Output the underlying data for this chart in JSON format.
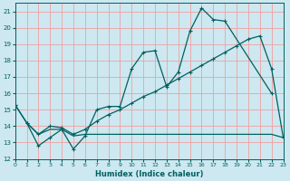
{
  "xlabel": "Humidex (Indice chaleur)",
  "bg_color": "#cde8f0",
  "grid_color": "#f0a0a0",
  "line_color": "#006060",
  "xlim": [
    0,
    23
  ],
  "ylim": [
    12,
    21.5
  ],
  "xticks": [
    0,
    1,
    2,
    3,
    4,
    5,
    6,
    7,
    8,
    9,
    10,
    11,
    12,
    13,
    14,
    15,
    16,
    17,
    18,
    19,
    20,
    21,
    22,
    23
  ],
  "yticks": [
    12,
    13,
    14,
    15,
    16,
    17,
    18,
    19,
    20,
    21
  ],
  "curve1_x": [
    0,
    1,
    2,
    3,
    4,
    5,
    6,
    7,
    8,
    9,
    10,
    11,
    12,
    13,
    14,
    15,
    16,
    17,
    18,
    22
  ],
  "curve1_y": [
    15.3,
    14.2,
    12.8,
    13.3,
    13.8,
    12.6,
    13.4,
    15.0,
    15.2,
    15.2,
    17.5,
    18.5,
    18.6,
    16.4,
    17.3,
    19.8,
    21.2,
    20.5,
    20.4,
    16.0
  ],
  "curve2_x": [
    0,
    1,
    2,
    3,
    4,
    5,
    6,
    7,
    8,
    9,
    10,
    11,
    12,
    13,
    14,
    15,
    16,
    17,
    18,
    19,
    20,
    21,
    22,
    23
  ],
  "curve2_y": [
    15.3,
    14.2,
    13.5,
    14.0,
    13.9,
    13.5,
    13.8,
    14.3,
    14.7,
    15.0,
    15.4,
    15.8,
    16.1,
    16.5,
    16.9,
    17.3,
    17.7,
    18.1,
    18.5,
    18.9,
    19.3,
    19.5,
    17.5,
    13.3
  ],
  "curve3_x": [
    1,
    2,
    3,
    4,
    5,
    6,
    7,
    8,
    9,
    10,
    11,
    12,
    13,
    14,
    15,
    16,
    17,
    18,
    22,
    23
  ],
  "curve3_y": [
    14.2,
    13.5,
    13.8,
    13.8,
    13.4,
    13.5,
    13.5,
    13.5,
    13.5,
    13.5,
    13.5,
    13.5,
    13.5,
    13.5,
    13.5,
    13.5,
    13.5,
    13.5,
    13.5,
    13.3
  ]
}
